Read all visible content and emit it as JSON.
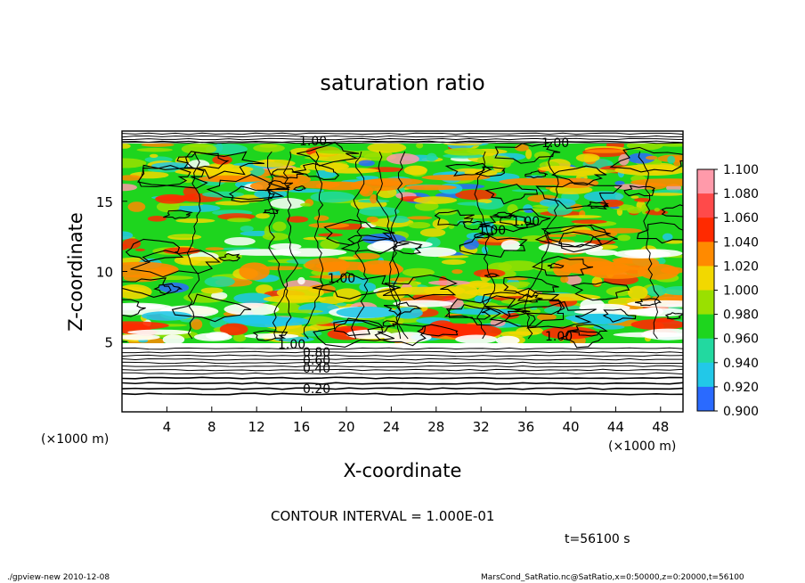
{
  "chart_data": {
    "type": "heatmap",
    "title": "saturation ratio",
    "xlabel": "X-coordinate",
    "ylabel": "Z-coordinate",
    "x_unit": "(×1000 m)",
    "y_unit": "(×1000 m)",
    "xlim": [
      0,
      50
    ],
    "ylim": [
      0,
      20
    ],
    "x_ticks": [
      "4",
      "8",
      "12",
      "16",
      "20",
      "24",
      "28",
      "32",
      "36",
      "40",
      "44",
      "48"
    ],
    "y_ticks": [
      "5",
      "10",
      "15"
    ],
    "colorbar": {
      "min": 0.9,
      "max": 1.1,
      "labels": [
        "1.100",
        "1.080",
        "1.060",
        "1.040",
        "1.020",
        "1.000",
        "0.980",
        "0.960",
        "0.940",
        "0.920",
        "0.900"
      ],
      "colors": [
        "#ff9aaa",
        "#ff4a4a",
        "#ff2a00",
        "#ff8a00",
        "#f2d800",
        "#9ae000",
        "#1ed51e",
        "#22d9a0",
        "#22c8e8",
        "#2a6aff",
        "#2020c8",
        "#7a10c0"
      ]
    },
    "contour_labels": [
      "1.00",
      "1.00",
      "1.00",
      "1.00",
      "1.00",
      "1.00",
      "1.00",
      "0.80",
      "0.60",
      "0.40",
      "0.20"
    ],
    "contour_interval_text": "CONTOUR INTERVAL = 1.000E-01",
    "time_text": "t=56100 s"
  },
  "footer": {
    "left": "./gpview-new  2010-12-08",
    "right": "MarsCond_SatRatio.nc@SatRatio,x=0:50000,z=0:20000,t=56100"
  }
}
